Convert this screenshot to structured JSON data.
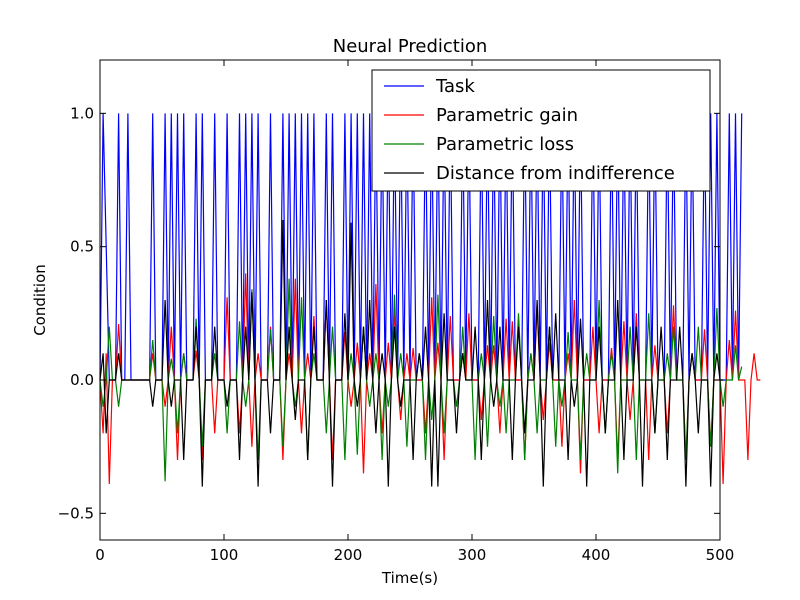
{
  "chart_data": {
    "type": "line",
    "title": "Neural Prediction",
    "xlabel": "Time(s)",
    "ylabel": "Condition",
    "xlim": [
      0,
      500
    ],
    "ylim": [
      -0.6,
      1.2
    ],
    "xticks": [
      0,
      100,
      200,
      300,
      400,
      500
    ],
    "xtick_labels": [
      "0",
      "100",
      "200",
      "300",
      "400",
      "500"
    ],
    "yticks": [
      -0.5,
      0.0,
      0.5,
      1.0
    ],
    "ytick_labels": [
      "−0.5",
      "0.0",
      "0.5",
      "1.0"
    ],
    "grid": false,
    "legend_position": "top-right",
    "time_step": 2.5,
    "series": [
      {
        "name": "Task",
        "color": "#0000ff",
        "values": [
          0.0,
          1.0,
          0.5,
          0.0,
          0.0,
          0.0,
          1.0,
          0.0,
          0.0,
          1.0,
          0.0,
          0.0,
          0.0,
          0.0,
          0.0,
          0.0,
          0.0,
          1.0,
          0.0,
          0.0,
          0.0,
          1.0,
          0.0,
          1.0,
          0.0,
          1.0,
          0.0,
          1.0,
          0.0,
          0.0,
          0.0,
          1.0,
          0.0,
          1.0,
          0.0,
          0.0,
          0.0,
          1.0,
          0.0,
          0.0,
          0.0,
          1.0,
          0.0,
          0.0,
          0.0,
          1.0,
          0.0,
          1.0,
          0.0,
          1.0,
          0.0,
          1.0,
          0.0,
          0.0,
          0.0,
          1.0,
          0.0,
          0.0,
          0.0,
          1.0,
          0.0,
          1.0,
          0.0,
          1.0,
          0.0,
          1.0,
          0.0,
          1.0,
          0.0,
          1.0,
          0.0,
          0.0,
          0.0,
          1.0,
          0.0,
          1.0,
          0.0,
          0.0,
          0.0,
          1.0,
          0.0,
          1.0,
          0.0,
          1.0,
          0.0,
          1.0,
          0.0,
          1.0,
          0.0,
          1.0,
          0.0,
          1.0,
          0.0,
          1.0,
          0.0,
          1.0,
          0.0,
          1.0,
          0.0,
          1.0,
          0.0,
          1.0,
          0.0,
          0.0,
          0.0,
          1.0,
          0.0,
          1.0,
          0.0,
          1.0,
          0.0,
          1.0,
          0.0,
          1.0,
          0.0,
          0.0,
          0.0,
          1.0,
          0.0,
          1.0,
          0.0,
          0.0,
          0.0,
          1.0,
          0.0,
          1.0,
          0.0,
          1.0,
          0.0,
          1.0,
          0.0,
          1.0,
          0.0,
          1.0,
          0.0,
          0.0,
          0.0,
          1.0,
          0.0,
          1.0,
          0.0,
          1.0,
          0.0,
          1.0,
          0.0,
          1.0,
          0.0,
          0.0,
          0.0,
          1.0,
          0.0,
          1.0,
          0.0,
          1.0,
          0.0,
          1.0,
          0.0,
          0.0,
          0.0,
          1.0,
          0.0,
          1.0,
          0.0,
          0.0,
          0.0,
          1.0,
          0.0,
          1.0,
          0.0,
          1.0,
          0.0,
          1.0,
          0.0,
          1.0,
          0.0,
          0.0,
          0.0,
          1.0,
          0.0,
          1.0,
          0.0,
          0.0,
          0.0,
          1.0,
          0.0,
          1.0,
          0.0,
          0.0,
          0.0,
          1.0,
          0.0,
          1.0,
          0.0,
          0.0,
          0.0,
          1.0,
          0.0,
          1.0,
          0.0,
          1.0,
          0.0,
          0.0,
          0.0,
          1.0,
          0.0,
          1.0,
          0.0,
          1.0
        ]
      },
      {
        "name": "Parametric gain",
        "color": "#ff0000",
        "values": [
          0.0,
          -0.2,
          0.1,
          -0.39,
          0.0,
          0.0,
          0.21,
          0.0,
          0.0,
          0.0,
          0.0,
          0.0,
          0.0,
          0.0,
          0.0,
          0.0,
          0.0,
          0.1,
          0.0,
          0.0,
          0.0,
          -0.1,
          0.0,
          0.2,
          0.0,
          -0.3,
          0.0,
          0.1,
          0.0,
          0.0,
          0.0,
          0.11,
          0.0,
          -0.3,
          0.0,
          0.0,
          0.0,
          -0.2,
          0.0,
          0.0,
          0.0,
          0.31,
          0.0,
          0.0,
          0.0,
          -0.2,
          0.0,
          0.4,
          0.0,
          -0.25,
          0.0,
          0.1,
          0.0,
          0.0,
          0.0,
          0.2,
          0.0,
          0.0,
          0.0,
          -0.3,
          0.0,
          0.1,
          0.0,
          0.38,
          0.0,
          -0.2,
          0.0,
          0.1,
          0.0,
          0.24,
          0.0,
          0.0,
          0.0,
          0.3,
          0.0,
          -0.3,
          0.0,
          0.0,
          0.0,
          0.18,
          0.0,
          -0.1,
          0.0,
          0.14,
          0.0,
          -0.35,
          0.0,
          0.1,
          0.0,
          0.36,
          0.0,
          -0.2,
          0.0,
          0.14,
          0.0,
          0.26,
          0.0,
          -0.15,
          0.0,
          0.1,
          0.0,
          0.12,
          0.0,
          0.0,
          0.0,
          -0.2,
          0.0,
          0.31,
          0.0,
          0.14,
          0.0,
          -0.3,
          0.0,
          0.24,
          0.0,
          0.0,
          0.0,
          0.1,
          0.0,
          0.25,
          0.0,
          0.0,
          0.0,
          -0.15,
          0.0,
          0.13,
          0.0,
          0.13,
          0.0,
          -0.2,
          0.0,
          0.23,
          0.0,
          0.22,
          0.0,
          0.0,
          0.0,
          -0.3,
          0.0,
          0.1,
          0.0,
          0.28,
          0.0,
          -0.15,
          0.0,
          0.14,
          0.0,
          0.0,
          0.0,
          -0.25,
          0.0,
          0.1,
          0.0,
          0.3,
          0.0,
          -0.35,
          0.0,
          0.0,
          0.0,
          0.2,
          0.0,
          -0.2,
          0.0,
          0.0,
          0.0,
          0.12,
          0.0,
          -0.3,
          0.0,
          0.22,
          0.0,
          -0.15,
          0.0,
          0.25,
          0.0,
          0.0,
          0.0,
          -0.3,
          0.0,
          0.13,
          0.0,
          0.0,
          0.0,
          -0.2,
          0.0,
          0.28,
          0.0,
          0.0,
          0.0,
          -0.3,
          0.0,
          0.1,
          0.0,
          0.0,
          0.0,
          0.19,
          0.0,
          -0.25,
          0.0,
          0.0,
          0.0,
          -0.39,
          0.0,
          0.15,
          0.0,
          0.26,
          0.0,
          0.0,
          0.0,
          -0.3,
          0.0,
          0.1,
          0.0,
          0.0
        ]
      },
      {
        "name": "Parametric loss",
        "color": "#008000",
        "values": [
          0.0,
          -0.1,
          0.0,
          0.2,
          0.0,
          0.0,
          -0.1,
          0.0,
          0.0,
          0.0,
          0.0,
          0.0,
          0.0,
          0.0,
          0.0,
          0.0,
          0.0,
          0.15,
          0.0,
          0.0,
          0.0,
          -0.38,
          0.0,
          0.08,
          0.0,
          -0.2,
          0.0,
          0.1,
          0.0,
          0.0,
          0.0,
          0.23,
          0.0,
          -0.25,
          0.0,
          0.0,
          0.0,
          0.1,
          0.0,
          0.0,
          0.0,
          -0.2,
          0.0,
          0.0,
          0.0,
          0.22,
          0.0,
          -0.1,
          0.0,
          0.34,
          0.0,
          -0.3,
          0.0,
          0.0,
          0.0,
          0.19,
          0.0,
          0.0,
          0.0,
          -0.25,
          0.0,
          0.38,
          0.0,
          -0.1,
          0.0,
          0.31,
          0.0,
          -0.3,
          0.0,
          0.1,
          0.0,
          0.0,
          0.0,
          -0.2,
          0.0,
          0.2,
          0.0,
          0.0,
          0.0,
          -0.3,
          0.0,
          0.1,
          0.0,
          -0.28,
          0.0,
          0.2,
          0.0,
          -0.1,
          0.0,
          0.1,
          0.0,
          -0.3,
          0.0,
          -0.1,
          0.0,
          0.32,
          0.0,
          0.1,
          0.0,
          -0.25,
          0.0,
          0.0,
          0.0,
          0.1,
          0.0,
          -0.3,
          0.0,
          -0.15,
          0.0,
          0.32,
          0.0,
          -0.2,
          0.0,
          0.0,
          0.0,
          -0.1,
          0.0,
          0.2,
          0.0,
          0.0,
          0.0,
          -0.3,
          0.0,
          0.1,
          0.0,
          -0.25,
          0.0,
          0.24,
          0.0,
          -0.1,
          0.0,
          -0.2,
          0.0,
          0.0,
          0.0,
          0.25,
          0.0,
          -0.3,
          0.0,
          0.1,
          0.0,
          -0.2,
          0.0,
          0.0,
          0.0,
          0.2,
          0.0,
          -0.25,
          0.0,
          -0.1,
          0.0,
          0.18,
          0.0,
          0.0,
          0.0,
          -0.3,
          0.0,
          0.1,
          0.0,
          0.0,
          0.0,
          0.3,
          0.0,
          -0.2,
          0.0,
          0.1,
          0.0,
          -0.35,
          0.0,
          0.0,
          0.0,
          0.2,
          0.0,
          -0.3,
          0.0,
          0.0,
          0.0,
          0.25,
          0.0,
          -0.2,
          0.0,
          0.0,
          0.0,
          0.1,
          0.0,
          0.2,
          0.0,
          0.0,
          0.0,
          -0.3,
          0.0,
          0.1,
          0.0,
          0.2,
          0.0,
          0.0,
          0.0,
          -0.25,
          0.0,
          0.27,
          0.0,
          -0.1,
          0.0,
          0.0,
          0.0,
          0.13,
          0.0,
          0.05
        ]
      },
      {
        "name": "Distance from indifference",
        "color": "#000000",
        "values": [
          0.0,
          0.1,
          -0.2,
          0.0,
          0.0,
          0.0,
          0.1,
          0.0,
          0.0,
          0.0,
          0.0,
          0.0,
          0.0,
          0.0,
          0.0,
          0.0,
          0.0,
          -0.1,
          0.0,
          0.0,
          0.0,
          0.3,
          0.0,
          -0.1,
          0.0,
          0.0,
          0.0,
          -0.3,
          0.0,
          0.0,
          0.0,
          0.2,
          0.0,
          -0.4,
          0.0,
          0.0,
          0.0,
          0.2,
          0.0,
          0.0,
          0.0,
          -0.1,
          0.0,
          0.0,
          0.0,
          -0.3,
          0.0,
          0.2,
          0.0,
          0.33,
          0.0,
          -0.4,
          0.0,
          0.0,
          0.0,
          -0.2,
          0.0,
          0.0,
          0.0,
          0.6,
          0.0,
          0.2,
          0.0,
          -0.15,
          0.0,
          0.0,
          0.0,
          -0.3,
          0.0,
          0.2,
          0.0,
          0.0,
          0.0,
          0.3,
          0.0,
          -0.4,
          0.0,
          0.0,
          0.0,
          0.25,
          0.0,
          0.59,
          0.0,
          -0.1,
          0.0,
          0.2,
          0.0,
          0.3,
          0.0,
          -0.2,
          0.0,
          0.1,
          0.0,
          -0.4,
          0.0,
          0.2,
          0.0,
          -0.1,
          0.0,
          0.0,
          0.0,
          -0.3,
          0.0,
          0.1,
          0.0,
          0.2,
          0.0,
          -0.4,
          0.0,
          -0.4,
          0.0,
          0.25,
          0.0,
          0.0,
          0.0,
          -0.2,
          0.0,
          0.1,
          0.0,
          0.0,
          0.0,
          0.2,
          0.0,
          -0.3,
          0.0,
          0.3,
          0.0,
          -0.1,
          0.0,
          0.2,
          0.0,
          0.0,
          0.0,
          -0.3,
          0.0,
          0.2,
          0.0,
          -0.2,
          0.0,
          0.0,
          0.0,
          0.3,
          0.0,
          -0.4,
          0.0,
          0.2,
          0.0,
          0.25,
          0.0,
          0.0,
          0.0,
          -0.3,
          0.0,
          -0.1,
          0.0,
          0.23,
          0.0,
          -0.4,
          0.0,
          0.0,
          0.0,
          0.2,
          0.0,
          -0.2,
          0.0,
          0.0,
          0.0,
          0.3,
          0.0,
          -0.3,
          0.0,
          0.0,
          0.0,
          0.2,
          0.0,
          -0.4,
          0.0,
          0.0,
          0.0,
          -0.2,
          0.0,
          0.2,
          0.0,
          -0.3,
          0.0,
          0.0,
          0.0,
          0.2,
          0.0,
          -0.4,
          0.0,
          0.1,
          0.0,
          -0.2,
          0.0,
          0.0,
          0.0,
          -0.4,
          0.0,
          0.1,
          0.0,
          0.0
        ]
      }
    ]
  }
}
